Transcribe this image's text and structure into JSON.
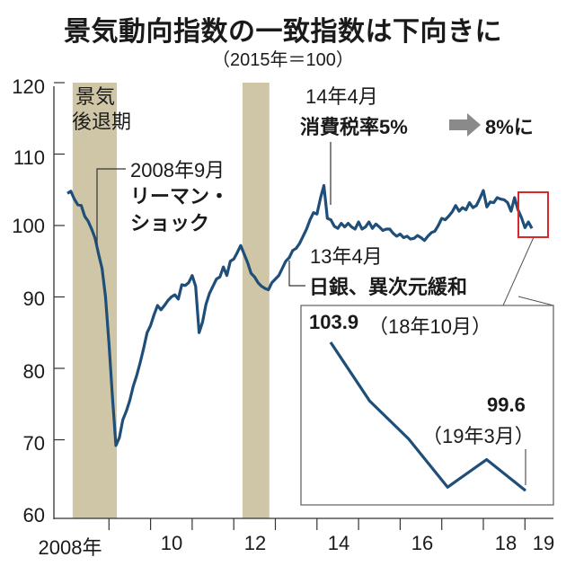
{
  "title": "景気動向指数の一致指数は下向きに",
  "subtitle": "（2015年＝100）",
  "chart_data": {
    "type": "line",
    "title": "景気動向指数の一致指数は下向きに",
    "subtitle": "（2015年＝100）",
    "xlabel": "",
    "ylabel": "",
    "ylim": [
      60,
      120
    ],
    "xlim": [
      "2008-01",
      "2019-03"
    ],
    "grid": false,
    "y_ticks": [
      "120",
      "110",
      "100",
      "90",
      "80",
      "70",
      "60"
    ],
    "x_ticks": [
      "2008年",
      "10",
      "12",
      "14",
      "16",
      "18",
      "19"
    ],
    "line_color": "#1f4e79",
    "recession_color": "#cfc6a8",
    "recession_label": "景気\n後退期",
    "recession_label_lines": [
      "景気",
      "後退期"
    ],
    "recessions": [
      [
        "2008-02",
        "2009-03"
      ],
      [
        "2012-03",
        "2012-11"
      ]
    ],
    "series": [
      {
        "start": "2008-01",
        "frequency": "monthly",
        "values": [
          104.5,
          104.8,
          103.7,
          102.9,
          102.8,
          101.3,
          100.6,
          99.5,
          98.2,
          96.0,
          94.0,
          90.0,
          83.5,
          76.0,
          69.2,
          70.3,
          72.8,
          74.0,
          75.5,
          77.5,
          79.0,
          80.8,
          82.8,
          85.0,
          86.0,
          87.5,
          88.8,
          88.2,
          88.8,
          89.5,
          90.0,
          90.3,
          89.7,
          91.7,
          91.6,
          92.0,
          93.0,
          91.5,
          85.0,
          86.5,
          89.0,
          90.5,
          91.5,
          92.5,
          92.8,
          94.2,
          93.0,
          95.0,
          95.3,
          96.2,
          97.2,
          96.0,
          94.8,
          93.3,
          92.8,
          92.0,
          91.5,
          91.2,
          91.0,
          92.0,
          92.5,
          93.0,
          94.0,
          95.0,
          95.5,
          96.5,
          96.8,
          97.5,
          98.5,
          99.5,
          100.8,
          101.8,
          101.6,
          103.8,
          105.6,
          101.0,
          100.8,
          99.9,
          99.6,
          100.3,
          99.8,
          100.3,
          99.8,
          99.5,
          100.5,
          99.5,
          99.8,
          100.5,
          99.6,
          100.2,
          99.8,
          99.3,
          99.5,
          99.5,
          98.9,
          98.5,
          98.8,
          98.3,
          98.5,
          98.1,
          98.2,
          98.6,
          98.3,
          97.9,
          98.5,
          99.0,
          99.2,
          100.0,
          101.0,
          100.8,
          101.3,
          101.9,
          102.8,
          102.0,
          102.5,
          102.2,
          103.2,
          102.5,
          102.8,
          103.8,
          104.9,
          102.6,
          103.3,
          103.2,
          103.9,
          103.7,
          103.6,
          103.2,
          102.0,
          103.9,
          102.2,
          101.1,
          99.7,
          100.5,
          99.6
        ]
      }
    ],
    "inset": {
      "x": [
        "2018-10",
        "2018-11",
        "2018-12",
        "2019-01",
        "2019-02",
        "2019-03"
      ],
      "values": [
        103.9,
        102.2,
        101.1,
        99.7,
        100.5,
        99.6
      ],
      "highlight_color": "#d9272e"
    },
    "annotations": {
      "lehman_date": "2008年9月",
      "lehman_1": "リーマン・",
      "lehman_2": "ショック",
      "tax_date": "14年4月",
      "tax_text": "消費税率5%",
      "tax_after": "8%に",
      "boj_date": "13年4月",
      "boj_text": "日銀、異次元緩和",
      "start_value": "103.9",
      "start_date": "（18年10月）",
      "end_value": "99.6",
      "end_date": "（19年3月）"
    }
  }
}
